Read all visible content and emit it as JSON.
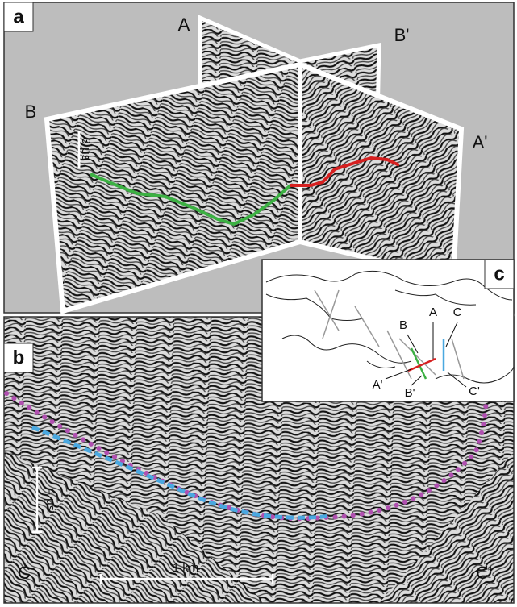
{
  "panel_a": {
    "label": "a",
    "labels": [
      "A",
      "B'",
      "B",
      "A'"
    ],
    "scale": "3 μs"
  },
  "panel_b": {
    "label": "b",
    "scale_vertical": "4 μs",
    "scale_horizontal": "1 km",
    "left": "C",
    "right": "C'"
  },
  "panel_c": {
    "label": "c",
    "labels": [
      "B",
      "A",
      "C",
      "A'",
      "B'",
      "C'"
    ]
  }
}
